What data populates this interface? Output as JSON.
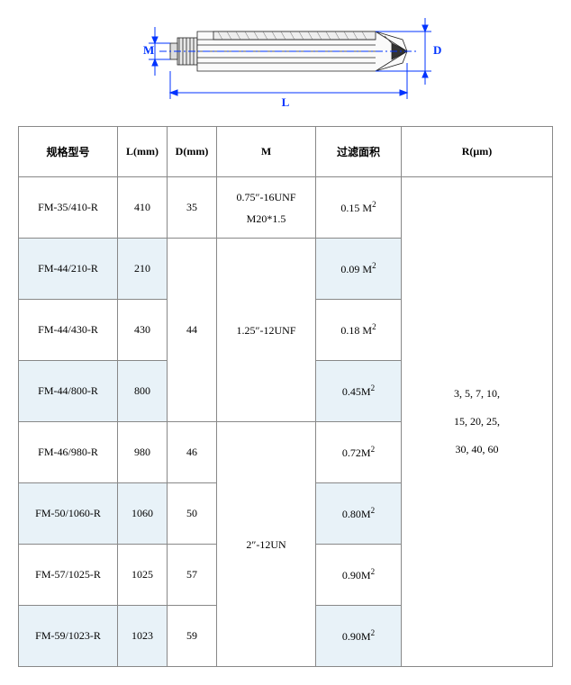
{
  "diagram": {
    "label_m": "M",
    "label_d": "D",
    "label_l": "L",
    "color": "#0033ff"
  },
  "headers": {
    "model": "规格型号",
    "l": "L(mm)",
    "d": "D(mm)",
    "m": "M",
    "area": "过滤面积",
    "r": "R(μm)"
  },
  "rows": [
    {
      "model": "FM-35/410-R",
      "l": "410",
      "area_val": "0.15 ",
      "shade": false
    },
    {
      "model": "FM-44/210-R",
      "l": "210",
      "area_val": "0.09 ",
      "shade": true
    },
    {
      "model": "FM-44/430-R",
      "l": "430",
      "area_val": "0.18 ",
      "shade": false
    },
    {
      "model": "FM-44/800-R",
      "l": "800",
      "area_val": "0.45",
      "shade": true
    },
    {
      "model": "FM-46/980-R",
      "l": "980",
      "area_val": "0.72",
      "shade": false
    },
    {
      "model": "FM-50/1060-R",
      "l": "1060",
      "area_val": "0.80",
      "shade": true
    },
    {
      "model": "FM-57/1025-R",
      "l": "1025",
      "area_val": "0.90",
      "shade": false
    },
    {
      "model": "FM-59/1023-R",
      "l": "1023",
      "area_val": "0.90",
      "shade": true
    }
  ],
  "d_cells": [
    {
      "value": "35",
      "rowspan": 1
    },
    {
      "value": "44",
      "rowspan": 3
    },
    {
      "value": "46",
      "rowspan": 1
    },
    {
      "value": "50",
      "rowspan": 1
    },
    {
      "value": "57",
      "rowspan": 1
    },
    {
      "value": "59",
      "rowspan": 1
    }
  ],
  "m_cells": [
    {
      "line1": "0.75″-16UNF",
      "line2": "M20*1.5",
      "rowspan": 1
    },
    {
      "line1": "1.25″-12UNF",
      "line2": "",
      "rowspan": 3
    },
    {
      "line1": "2″-12UN",
      "line2": "",
      "rowspan": 4
    }
  ],
  "r_cell": {
    "line1": "3,  5,  7,  10,",
    "line2": "15, 20, 25,",
    "line3": "30,  40,  60"
  }
}
